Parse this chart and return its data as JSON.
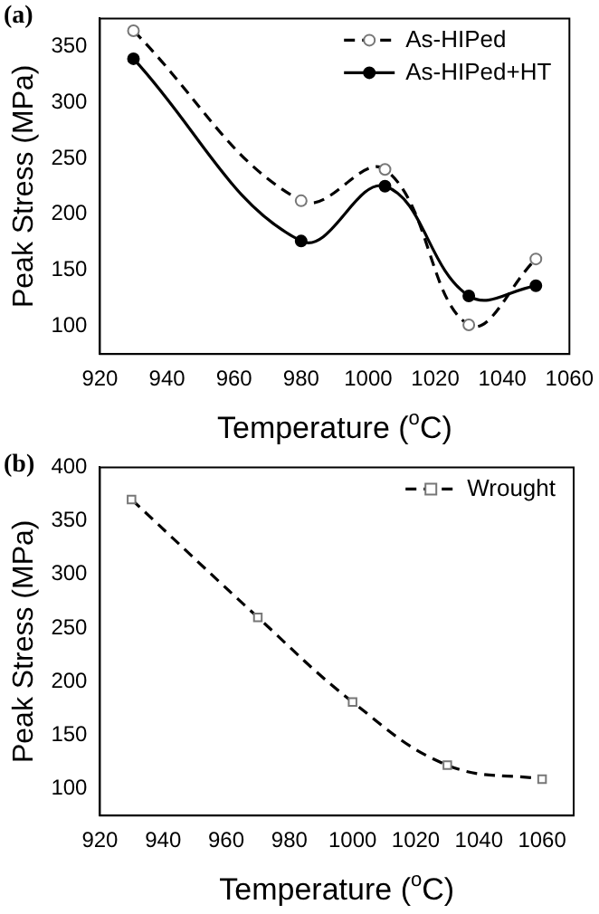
{
  "chart_data": [
    {
      "type": "line",
      "title": "(a)",
      "xlabel": "Temperature ($^{o}$C)",
      "ylabel": "Peak Stress (MPa)",
      "x": [
        930,
        980,
        1005,
        1030,
        1050
      ],
      "xlim": [
        920,
        1060
      ],
      "xticks": [
        920,
        940,
        960,
        980,
        1000,
        1020,
        1040,
        1060
      ],
      "ylim": [
        75,
        375
      ],
      "yticks": [
        100,
        150,
        200,
        250,
        300,
        350
      ],
      "grid": false,
      "legend": "top right",
      "marker": "circle",
      "series": [
        {
          "name": "As-HIPed",
          "color": "#000000",
          "line_style": "dashed",
          "values": [
            364,
            212,
            240,
            101,
            160
          ]
        },
        {
          "name": "As-HIPed+HT",
          "color": "#000000",
          "line_style": "solid",
          "values": [
            339,
            176,
            225,
            127,
            136
          ]
        }
      ]
    },
    {
      "type": "line",
      "title": "(b)",
      "xlabel": "Temperature ($^{o}$C)",
      "ylabel": "Peak Stress (MPa)",
      "x": [
        930,
        970,
        1000,
        1030,
        1060
      ],
      "xlim": [
        920,
        1070
      ],
      "xticks": [
        920,
        940,
        960,
        980,
        1000,
        1020,
        1040,
        1060
      ],
      "ylim": [
        75,
        400
      ],
      "yticks": [
        100,
        150,
        200,
        250,
        300,
        350,
        400
      ],
      "grid": false,
      "legend": "top right",
      "marker": "square",
      "series": [
        {
          "name": "Wrought",
          "color": "#000000",
          "line_style": "dashed",
          "values": [
            370,
            260,
            181,
            122,
            109
          ]
        }
      ]
    }
  ]
}
